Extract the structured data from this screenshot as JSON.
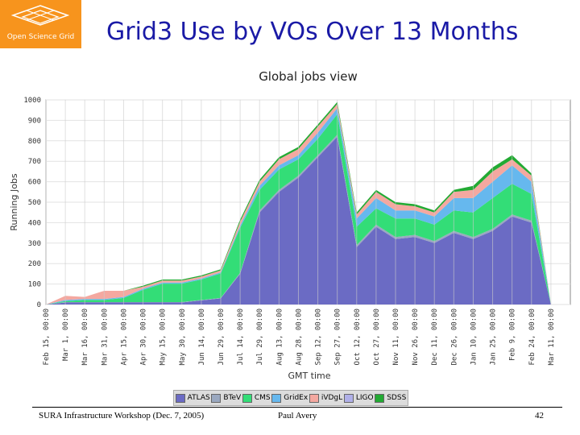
{
  "slide": {
    "title": "Grid3 Use by VOs Over 13 Months",
    "logo_text": "Open Science Grid",
    "footer_left": "SURA Infrastructure Workshop (Dec. 7, 2005)",
    "footer_center": "Paul Avery",
    "page_number": "42"
  },
  "colors": {
    "accent": "#1a1aa6",
    "logo_bg": "#f7941d"
  },
  "chart_data": {
    "type": "area",
    "title": "Global jobs view",
    "xlabel": "GMT time",
    "ylabel": "Running Jobs",
    "ylim": [
      0,
      1000
    ],
    "yticks": [
      0,
      100,
      200,
      300,
      400,
      500,
      600,
      700,
      800,
      900,
      1000
    ],
    "grid": true,
    "legend_position": "bottom",
    "x": [
      "Feb 15, 00:00",
      "Mar 1, 00:00",
      "Mar 16, 00:00",
      "Mar 31, 00:00",
      "Apr 15, 00:00",
      "Apr 30, 00:00",
      "May 15, 00:00",
      "May 30, 00:00",
      "Jun 14, 00:00",
      "Jun 29, 00:00",
      "Jul 14, 00:00",
      "Jul 29, 00:00",
      "Aug 13, 00:00",
      "Aug 28, 00:00",
      "Sep 12, 00:00",
      "Sep 27, 00:00",
      "Oct 12, 00:00",
      "Oct 27, 00:00",
      "Nov 11, 00:00",
      "Nov 26, 00:00",
      "Dec 11, 00:00",
      "Dec 26, 00:00",
      "Jan 10, 00:00",
      "Jan 25, 00:00",
      "Feb 9, 00:00",
      "Feb 24, 00:00",
      "Mar 11, 00:00"
    ],
    "series": [
      {
        "name": "ATLAS",
        "color": "#6b6bc4",
        "values": [
          0,
          10,
          10,
          10,
          10,
          10,
          10,
          10,
          20,
          30,
          150,
          450,
          550,
          620,
          720,
          820,
          280,
          380,
          320,
          330,
          300,
          350,
          320,
          360,
          430,
          400,
          0
        ]
      },
      {
        "name": "BTeV",
        "color": "#9aa8c0",
        "values": [
          0,
          2,
          2,
          2,
          2,
          2,
          2,
          2,
          2,
          2,
          5,
          10,
          10,
          10,
          10,
          10,
          10,
          10,
          10,
          10,
          10,
          10,
          10,
          10,
          10,
          10,
          0
        ]
      },
      {
        "name": "CMS",
        "color": "#33dd77",
        "values": [
          0,
          5,
          10,
          10,
          20,
          60,
          90,
          90,
          100,
          120,
          220,
          100,
          100,
          80,
          80,
          100,
          90,
          80,
          90,
          80,
          80,
          100,
          120,
          150,
          150,
          130,
          0
        ]
      },
      {
        "name": "GridEx",
        "color": "#66b8ee",
        "values": [
          0,
          5,
          5,
          5,
          5,
          5,
          5,
          5,
          5,
          5,
          10,
          20,
          20,
          20,
          30,
          30,
          40,
          50,
          40,
          40,
          40,
          60,
          70,
          80,
          90,
          60,
          0
        ]
      },
      {
        "name": "iVDgL",
        "color": "#f4a8a0",
        "values": [
          0,
          20,
          10,
          40,
          30,
          10,
          10,
          10,
          10,
          10,
          20,
          20,
          30,
          30,
          30,
          20,
          20,
          30,
          30,
          20,
          20,
          30,
          40,
          50,
          30,
          30,
          0
        ]
      },
      {
        "name": "LIGO",
        "color": "#b0b0e8",
        "values": [
          0,
          0,
          0,
          0,
          0,
          0,
          0,
          0,
          0,
          0,
          0,
          0,
          0,
          0,
          0,
          0,
          0,
          0,
          0,
          0,
          0,
          0,
          0,
          0,
          0,
          0,
          0
        ]
      },
      {
        "name": "SDSS",
        "color": "#22aa33",
        "values": [
          0,
          0,
          0,
          0,
          0,
          5,
          5,
          5,
          5,
          5,
          10,
          10,
          10,
          10,
          10,
          10,
          10,
          10,
          10,
          10,
          10,
          10,
          20,
          20,
          20,
          10,
          0
        ]
      }
    ]
  }
}
